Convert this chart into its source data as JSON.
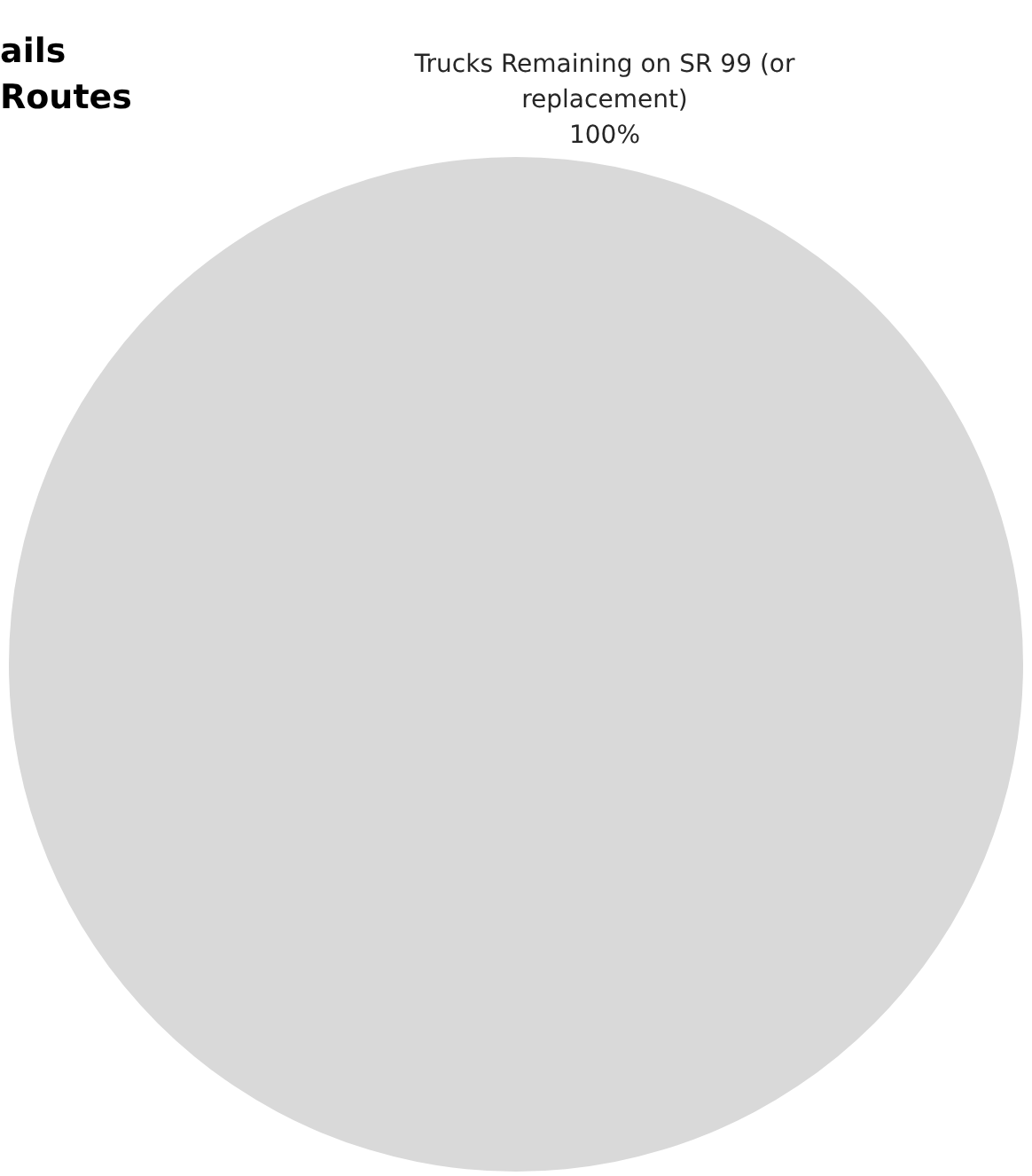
{
  "chart_data": {
    "type": "pie",
    "categories": [
      "Trucks Remaining on SR 99 (or replacement)"
    ],
    "values": [
      100
    ],
    "value_labels": [
      "100%"
    ],
    "colors": [
      "#d9d9d9"
    ],
    "annotations": [
      "ails",
      "Routes"
    ],
    "legend": false
  }
}
